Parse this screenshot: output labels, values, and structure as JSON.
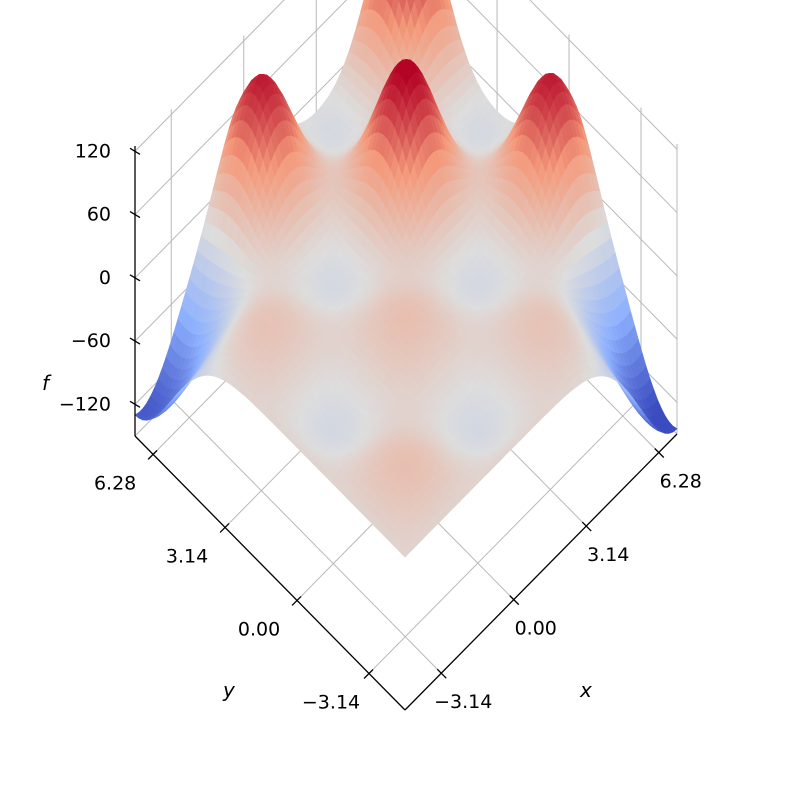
{
  "chart_data": {
    "type": "surface3d",
    "title": "",
    "colormap": "coolwarm",
    "xlabel": "x",
    "ylabel": "y",
    "zlabel": "f",
    "x_range": [
      -4.71,
      7.07
    ],
    "y_range": [
      -4.71,
      7.07
    ],
    "z_range": [
      -150,
      125
    ],
    "x_ticks": [
      -3.14,
      0.0,
      3.14,
      6.28
    ],
    "x_tick_labels": [
      "−3.14",
      "0.00",
      "3.14",
      "6.28"
    ],
    "y_ticks": [
      -3.14,
      0.0,
      3.14,
      6.28
    ],
    "y_tick_labels": [
      "−3.14",
      "0.00",
      "3.14",
      "6.28"
    ],
    "z_ticks": [
      -120,
      -60,
      0,
      60,
      120
    ],
    "z_tick_labels": [
      "−120",
      "−60",
      "0",
      "60",
      "120"
    ],
    "grid": true,
    "peaks": [
      {
        "x": 6.28,
        "y": 6.28,
        "f": 110
      },
      {
        "x": 3.14,
        "y": 3.14,
        "f": 98
      },
      {
        "x": 6.28,
        "y": 0.0,
        "f": 85
      },
      {
        "x": 0.0,
        "y": 6.28,
        "f": 85
      }
    ],
    "minima": [
      {
        "x": -4.71,
        "y": 7.07,
        "f": -125
      },
      {
        "x": 7.07,
        "y": -4.71,
        "f": -140
      }
    ]
  }
}
